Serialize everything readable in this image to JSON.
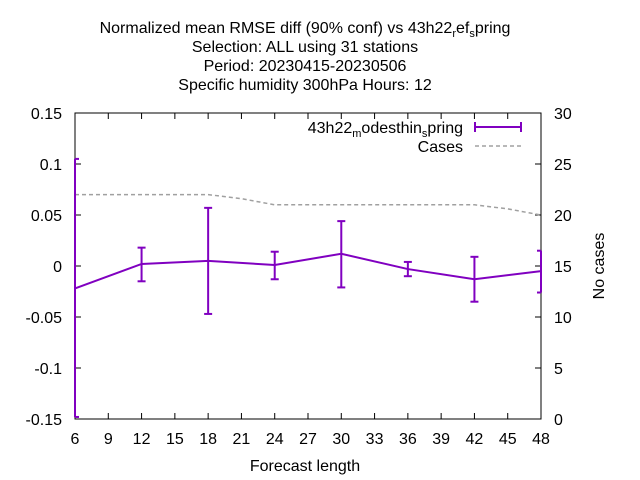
{
  "chart_data": {
    "type": "line",
    "title_lines": [
      "Normalized mean RMSE diff (90% conf) vs 43h22",
      "Selection: ALL using    31 stations",
      "Period: 20230415-20230506",
      "Specific humidity 300hPa   Hours:  12"
    ],
    "title_line1_rich": {
      "parts": [
        {
          "text": "Normalized mean RMSE diff (90% conf) vs 43h22",
          "style": "normal"
        },
        {
          "text": "r",
          "style": "sub"
        },
        {
          "text": "ef",
          "style": "normal"
        },
        {
          "text": "s",
          "style": "sub"
        },
        {
          "text": "pring",
          "style": "normal"
        }
      ]
    },
    "xlabel": "Forecast length",
    "ylabel": "",
    "y2label": "No cases",
    "xlim": [
      6,
      48
    ],
    "ylim": [
      -0.15,
      0.15
    ],
    "y2lim": [
      0,
      30
    ],
    "x_ticks": [
      6,
      9,
      12,
      15,
      18,
      21,
      24,
      27,
      30,
      33,
      36,
      39,
      42,
      45,
      48
    ],
    "y_ticks": [
      -0.15,
      -0.1,
      -0.05,
      0,
      0.05,
      0.1,
      0.15
    ],
    "y_tick_labels": [
      "-0.15",
      "-0.1",
      "-0.05",
      "0",
      "0.05",
      "0.1",
      "0.15"
    ],
    "y2_ticks": [
      0,
      5,
      10,
      15,
      20,
      25,
      30
    ],
    "legend_placement": "top-right",
    "grid": false,
    "series": [
      {
        "name_parts": [
          {
            "text": "43h22",
            "style": "normal"
          },
          {
            "text": "m",
            "style": "sub"
          },
          {
            "text": "odesthin",
            "style": "normal"
          },
          {
            "text": "s",
            "style": "sub"
          },
          {
            "text": "pring",
            "style": "normal"
          }
        ],
        "kind": "errorbar-line",
        "color": "#8000c0",
        "x": [
          6,
          12,
          18,
          24,
          30,
          36,
          42,
          48
        ],
        "y": [
          -0.022,
          0.002,
          0.005,
          0.001,
          0.012,
          -0.003,
          -0.013,
          -0.005
        ],
        "err_low": [
          -0.148,
          -0.015,
          -0.047,
          -0.013,
          -0.021,
          -0.01,
          -0.035,
          -0.026
        ],
        "err_high": [
          0.105,
          0.018,
          0.057,
          0.014,
          0.044,
          0.004,
          0.009,
          0.015
        ]
      },
      {
        "name": "Cases",
        "kind": "dashed-line",
        "axis": "y2",
        "color": "#a0a0a0",
        "x": [
          6,
          9,
          12,
          15,
          18,
          21,
          24,
          27,
          30,
          33,
          36,
          39,
          42,
          45,
          48
        ],
        "y": [
          22,
          22,
          22,
          22,
          22,
          21.6,
          21,
          21,
          21,
          21,
          21,
          21,
          21,
          20.6,
          20
        ]
      }
    ]
  }
}
